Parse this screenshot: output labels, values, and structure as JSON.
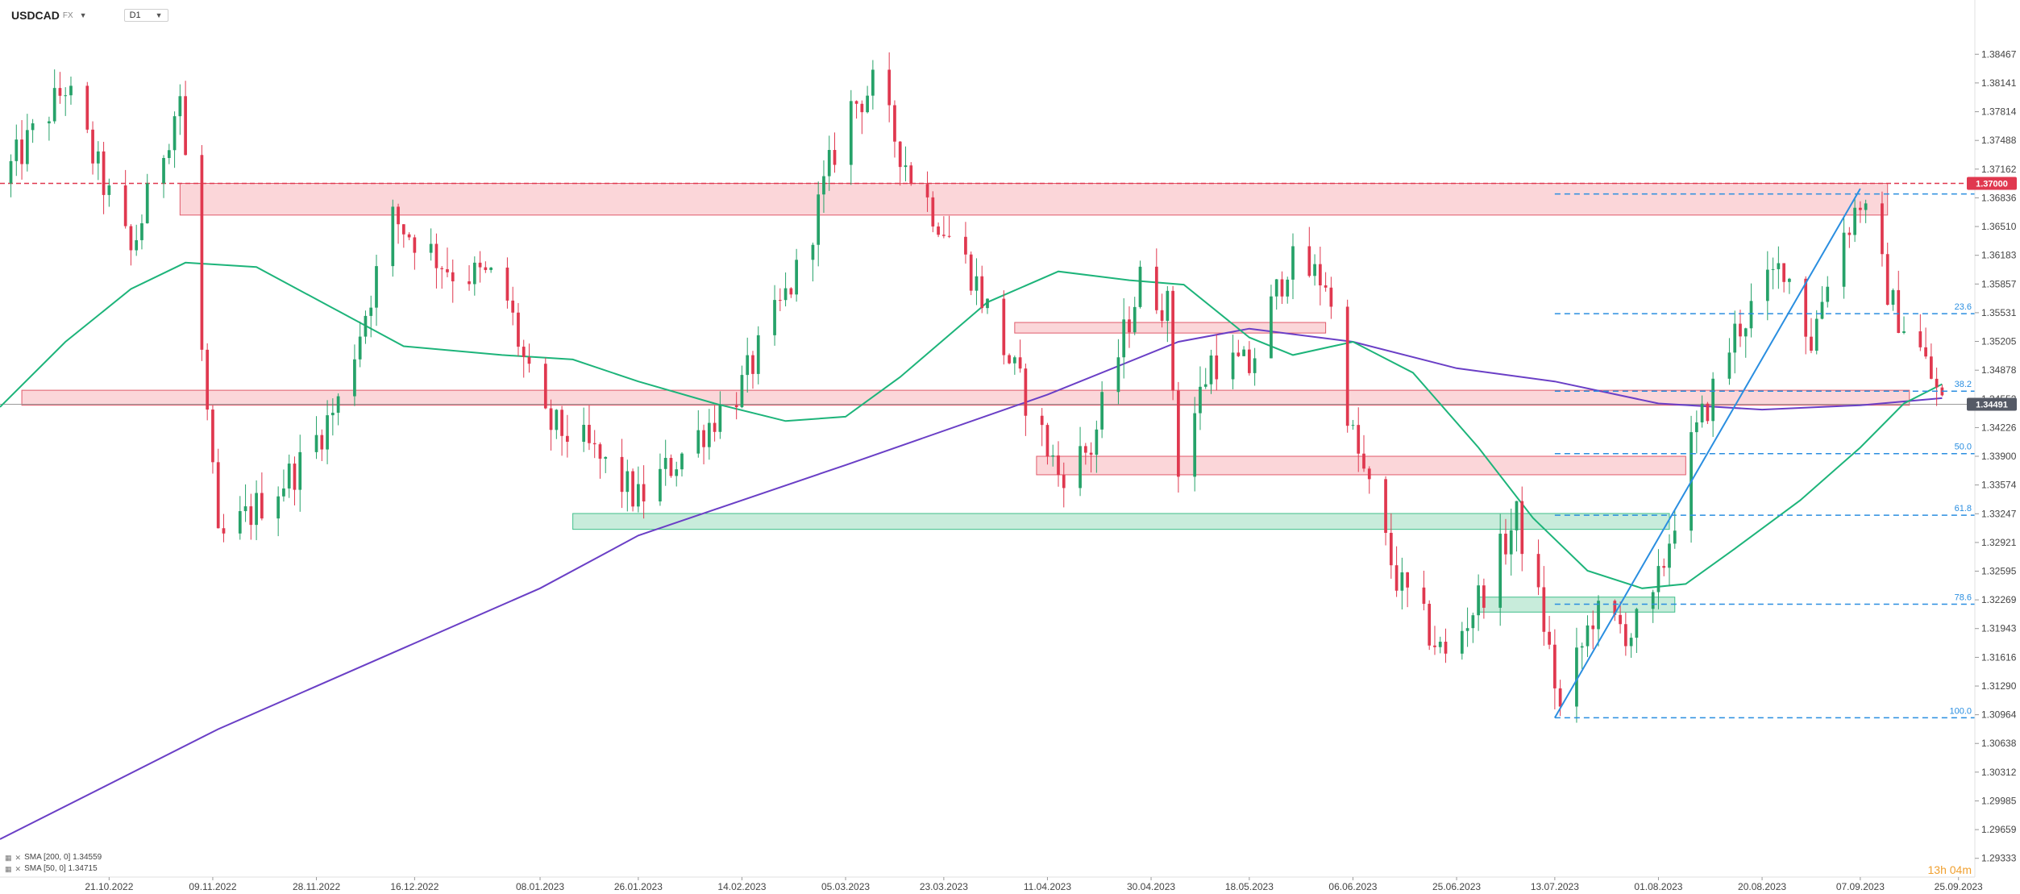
{
  "toolbar": {
    "symbol": "USDCAD",
    "symbol_tag": "FX",
    "timeframe": "D1"
  },
  "legend": {
    "sma200": "SMA [200, 0] 1.34559",
    "sma50": "SMA [50, 0] 1.34715"
  },
  "countdown": {
    "hours": "13h",
    "minutes": "04m"
  },
  "colors": {
    "up": "#26a269",
    "down": "#e0384f",
    "sma200": "#6a3fc6",
    "sma50": "#1db47a",
    "fib": "#2a8ee0",
    "resistance_fill": "#f9c8cc",
    "support_fill": "#b5e6cf",
    "price_tag": "#555a66",
    "level_tag": "#e0384f"
  },
  "chart_data": {
    "type": "candlestick",
    "symbol": "USDCAD",
    "timeframe": "D1",
    "y_range": [
      1.2912,
      1.389
    ],
    "y_ticks": [
      "1.38467",
      "1.38141",
      "1.37814",
      "1.37488",
      "1.37162",
      "1.36836",
      "1.36510",
      "1.36183",
      "1.35857",
      "1.35531",
      "1.35205",
      "1.34878",
      "1.34552",
      "1.34226",
      "1.33900",
      "1.33574",
      "1.33247",
      "1.32921",
      "1.32595",
      "1.32269",
      "1.31943",
      "1.31616",
      "1.31290",
      "1.30964",
      "1.30638",
      "1.30312",
      "1.29985",
      "1.29659",
      "1.29333"
    ],
    "x_ticks": [
      "21.10.2022",
      "09.11.2022",
      "28.11.2022",
      "16.12.2022",
      "08.01.2023",
      "26.01.2023",
      "14.02.2023",
      "05.03.2023",
      "23.03.2023",
      "11.04.2023",
      "30.04.2023",
      "18.05.2023",
      "06.06.2023",
      "25.06.2023",
      "13.07.2023",
      "01.08.2023",
      "20.08.2023",
      "07.09.2023",
      "25.09.2023"
    ],
    "current_price": "1.34491",
    "current_price_value": 1.34491,
    "resistance_level": {
      "label": "1.37000",
      "value": 1.37
    },
    "fibonacci": {
      "start": {
        "date": "13.07.2023",
        "value": 1.3093
      },
      "end": {
        "date": "07.09.2023",
        "value": 1.3694
      },
      "levels": [
        {
          "label": "23.6",
          "value": 1.3552
        },
        {
          "label": "38.2",
          "value": 1.3464
        },
        {
          "label": "50.0",
          "value": 1.3393
        },
        {
          "label": "61.8",
          "value": 1.3323
        },
        {
          "label": "78.6",
          "value": 1.3222
        },
        {
          "label": "100.0",
          "value": 1.3093
        }
      ],
      "top_line": 1.3688
    },
    "zones": [
      {
        "kind": "resistance",
        "from": "03.11.2022",
        "to": "12.09.2023",
        "low": 1.3664,
        "high": 1.37
      },
      {
        "kind": "resistance",
        "from": "05.04.2023",
        "to": "01.06.2023",
        "low": 1.353,
        "high": 1.3542
      },
      {
        "kind": "resistance",
        "from": "05.10.2022",
        "to": "16.09.2023",
        "low": 1.3448,
        "high": 1.3465
      },
      {
        "kind": "resistance",
        "from": "09.04.2023",
        "to": "06.08.2023",
        "low": 1.3369,
        "high": 1.339
      },
      {
        "kind": "support",
        "from": "14.01.2023",
        "to": "03.08.2023",
        "low": 1.3307,
        "high": 1.3325
      },
      {
        "kind": "support",
        "from": "29.06.2023",
        "to": "04.08.2023",
        "low": 1.3213,
        "high": 1.323
      }
    ],
    "anchors": [
      {
        "date": "01.10.2022",
        "value": 1.37
      },
      {
        "date": "13.10.2022",
        "value": 1.381
      },
      {
        "date": "25.10.2022",
        "value": 1.362
      },
      {
        "date": "03.11.2022",
        "value": 1.38
      },
      {
        "date": "10.11.2022",
        "value": 1.329
      },
      {
        "date": "15.11.2022",
        "value": 1.332
      },
      {
        "date": "25.11.2022",
        "value": 1.338
      },
      {
        "date": "02.12.2022",
        "value": 1.345
      },
      {
        "date": "12.12.2022",
        "value": 1.366
      },
      {
        "date": "23.12.2022",
        "value": 1.36
      },
      {
        "date": "01.01.2023",
        "value": 1.359
      },
      {
        "date": "08.01.2023",
        "value": 1.343
      },
      {
        "date": "15.01.2023",
        "value": 1.341
      },
      {
        "date": "26.01.2023",
        "value": 1.334
      },
      {
        "date": "04.02.2023",
        "value": 1.34
      },
      {
        "date": "14.02.2023",
        "value": 1.347
      },
      {
        "date": "25.02.2023",
        "value": 1.361
      },
      {
        "date": "05.03.2023",
        "value": 1.378
      },
      {
        "date": "10.03.2023",
        "value": 1.381
      },
      {
        "date": "17.03.2023",
        "value": 1.371
      },
      {
        "date": "28.03.2023",
        "value": 1.36
      },
      {
        "date": "06.04.2023",
        "value": 1.347
      },
      {
        "date": "13.04.2023",
        "value": 1.337
      },
      {
        "date": "19.04.2023",
        "value": 1.34
      },
      {
        "date": "28.04.2023",
        "value": 1.359
      },
      {
        "date": "03.05.2023",
        "value": 1.356
      },
      {
        "date": "05.05.2023",
        "value": 1.338
      },
      {
        "date": "11.05.2023",
        "value": 1.35
      },
      {
        "date": "18.05.2023",
        "value": 1.349
      },
      {
        "date": "25.05.2023",
        "value": 1.361
      },
      {
        "date": "01.06.2023",
        "value": 1.359
      },
      {
        "date": "06.06.2023",
        "value": 1.341
      },
      {
        "date": "14.06.2023",
        "value": 1.325
      },
      {
        "date": "23.06.2023",
        "value": 1.316
      },
      {
        "date": "30.06.2023",
        "value": 1.324
      },
      {
        "date": "06.07.2023",
        "value": 1.332
      },
      {
        "date": "11.07.2023",
        "value": 1.32
      },
      {
        "date": "14.07.2023",
        "value": 1.31
      },
      {
        "date": "20.07.2023",
        "value": 1.321
      },
      {
        "date": "27.07.2023",
        "value": 1.319
      },
      {
        "date": "31.07.2023",
        "value": 1.322
      },
      {
        "date": "07.08.2023",
        "value": 1.34
      },
      {
        "date": "15.08.2023",
        "value": 1.353
      },
      {
        "date": "24.08.2023",
        "value": 1.361
      },
      {
        "date": "29.08.2023",
        "value": 1.352
      },
      {
        "date": "02.09.2023",
        "value": 1.362
      },
      {
        "date": "07.09.2023",
        "value": 1.368
      },
      {
        "date": "13.09.2023",
        "value": 1.356
      },
      {
        "date": "18.09.2023",
        "value": 1.351
      },
      {
        "date": "22.09.2023",
        "value": 1.3449
      }
    ],
    "sma50_path": [
      {
        "date": "01.10.2022",
        "value": 1.3446
      },
      {
        "date": "13.10.2022",
        "value": 1.352
      },
      {
        "date": "25.10.2022",
        "value": 1.358
      },
      {
        "date": "04.11.2022",
        "value": 1.361
      },
      {
        "date": "17.11.2022",
        "value": 1.3605
      },
      {
        "date": "02.12.2022",
        "value": 1.3555
      },
      {
        "date": "14.12.2022",
        "value": 1.3515
      },
      {
        "date": "01.01.2023",
        "value": 1.3505
      },
      {
        "date": "14.01.2023",
        "value": 1.35
      },
      {
        "date": "26.01.2023",
        "value": 1.3475
      },
      {
        "date": "09.02.2023",
        "value": 1.345
      },
      {
        "date": "22.02.2023",
        "value": 1.343
      },
      {
        "date": "05.03.2023",
        "value": 1.3435
      },
      {
        "date": "15.03.2023",
        "value": 1.348
      },
      {
        "date": "31.03.2023",
        "value": 1.3565
      },
      {
        "date": "13.04.2023",
        "value": 1.36
      },
      {
        "date": "26.04.2023",
        "value": 1.359
      },
      {
        "date": "06.05.2023",
        "value": 1.3585
      },
      {
        "date": "18.05.2023",
        "value": 1.3525
      },
      {
        "date": "26.05.2023",
        "value": 1.3505
      },
      {
        "date": "06.06.2023",
        "value": 1.352
      },
      {
        "date": "17.06.2023",
        "value": 1.3485
      },
      {
        "date": "29.06.2023",
        "value": 1.34
      },
      {
        "date": "09.07.2023",
        "value": 1.332
      },
      {
        "date": "19.07.2023",
        "value": 1.326
      },
      {
        "date": "29.07.2023",
        "value": 1.324
      },
      {
        "date": "06.08.2023",
        "value": 1.3245
      },
      {
        "date": "15.08.2023",
        "value": 1.3285
      },
      {
        "date": "27.08.2023",
        "value": 1.334
      },
      {
        "date": "07.09.2023",
        "value": 1.34
      },
      {
        "date": "15.09.2023",
        "value": 1.345
      },
      {
        "date": "22.09.2023",
        "value": 1.3472
      }
    ],
    "sma200_path": [
      {
        "date": "01.10.2022",
        "value": 1.2955
      },
      {
        "date": "10.11.2022",
        "value": 1.308
      },
      {
        "date": "08.01.2023",
        "value": 1.324
      },
      {
        "date": "26.01.2023",
        "value": 1.33
      },
      {
        "date": "05.03.2023",
        "value": 1.338
      },
      {
        "date": "11.04.2023",
        "value": 1.346
      },
      {
        "date": "05.05.2023",
        "value": 1.352
      },
      {
        "date": "18.05.2023",
        "value": 1.3535
      },
      {
        "date": "06.06.2023",
        "value": 1.352
      },
      {
        "date": "25.06.2023",
        "value": 1.349
      },
      {
        "date": "13.07.2023",
        "value": 1.3475
      },
      {
        "date": "01.08.2023",
        "value": 1.345
      },
      {
        "date": "20.08.2023",
        "value": 1.3443
      },
      {
        "date": "07.09.2023",
        "value": 1.3448
      },
      {
        "date": "22.09.2023",
        "value": 1.3456
      }
    ]
  }
}
